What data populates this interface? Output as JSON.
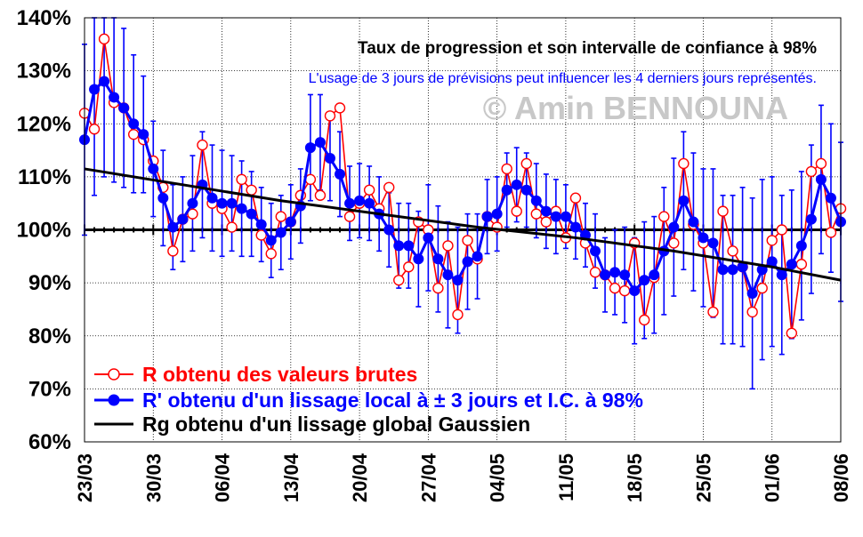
{
  "chart_data": {
    "type": "line",
    "title": "Taux de progression et son intervalle de confiance à 98%",
    "subtitle": "L'usage de 3 jours de prévisions peut influencer les 4 derniers jours représentés.",
    "watermark": "© Amin BENNOUNA",
    "y_ticks": [
      "140%",
      "130%",
      "120%",
      "110%",
      "100%",
      "90%",
      "80%",
      "70%",
      "60%"
    ],
    "ylim": [
      60,
      140
    ],
    "x_ticks": [
      "23/03",
      "30/03",
      "06/04",
      "13/04",
      "20/04",
      "27/04",
      "04/05",
      "11/05",
      "18/05",
      "25/05",
      "01/06",
      "08/06"
    ],
    "x_start": "23/03",
    "x_end": "08/06",
    "reference_line": 100,
    "legend": [
      {
        "label": "R obtenu des valeurs brutes",
        "color": "#ff0000"
      },
      {
        "label": "R' obtenu d'un lissage local à ± 3 jours et I.C. à 98%",
        "color": "#0000ff"
      },
      {
        "label": "Rg obtenu d'un lissage global Gaussien",
        "color": "#000000"
      }
    ],
    "series": [
      {
        "name": "R obtenu des valeurs brutes",
        "color": "#ff0000",
        "values": [
          122,
          119,
          136,
          124,
          123,
          118,
          117,
          113,
          108,
          96,
          102,
          103,
          116,
          105,
          104,
          100.5,
          109.5,
          107.5,
          99,
          95.5,
          102.5,
          101.5,
          106.5,
          109.5,
          106.5,
          121.5,
          123,
          102.5,
          105,
          107.5,
          104,
          108,
          90.5,
          93,
          101.5,
          100,
          89,
          97,
          84,
          98,
          94.5,
          102.5,
          100.5,
          111.5,
          103.5,
          112.5,
          103,
          101.5,
          103.5,
          98.5,
          106,
          97.5,
          92,
          91.5,
          89,
          88.5,
          97.5,
          83,
          91,
          102.5,
          97.5,
          112.5,
          101,
          97.5,
          84.5,
          103.5,
          96,
          93,
          84.5,
          89,
          98,
          100,
          80.5,
          93.5,
          111,
          112.5,
          99.5,
          104
        ]
      },
      {
        "name": "R' obtenu d'un lissage local à ± 3 jours et I.C. à 98%",
        "color": "#0000ff",
        "values": [
          117,
          126.5,
          128,
          125,
          123,
          120,
          118,
          111.5,
          106,
          100.5,
          102,
          105,
          108.5,
          106,
          105,
          105,
          104,
          103,
          101,
          98,
          99.5,
          101.5,
          104.5,
          115.5,
          116.5,
          113.5,
          110.5,
          105,
          105.5,
          105,
          103,
          100,
          97,
          97,
          94.5,
          98.5,
          94.5,
          91.5,
          90.5,
          94,
          95,
          102.5,
          103,
          107.5,
          108.5,
          107.5,
          105.5,
          103.5,
          102.5,
          102.5,
          100.5,
          99,
          96,
          91.5,
          92,
          91.5,
          88.5,
          90.5,
          91.5,
          96,
          100.5,
          105.5,
          101.5,
          98.5,
          97.5,
          92.5,
          92.5,
          93,
          88,
          92.5,
          94,
          91.5,
          93.5,
          97,
          102,
          109.5,
          106,
          101.5
        ],
        "ci_half_width": [
          18,
          20,
          18,
          16,
          15,
          13,
          11,
          9,
          9,
          8,
          8,
          9,
          10,
          10,
          10,
          9,
          9,
          8,
          7,
          7,
          7,
          7,
          7,
          10,
          9,
          8,
          8,
          7,
          7,
          7,
          7,
          7,
          8,
          8,
          9,
          10,
          10,
          10,
          10,
          9,
          8,
          7,
          7,
          7,
          7,
          7,
          7,
          7,
          7,
          6,
          6,
          6,
          7,
          7,
          8,
          9,
          10,
          11,
          11,
          12,
          13,
          13,
          13,
          13,
          14,
          14,
          14,
          15,
          18,
          17,
          16,
          15,
          14,
          14,
          14,
          14,
          14,
          15
        ]
      },
      {
        "name": "Rg obtenu d'un lissage global Gaussien",
        "color": "#000000",
        "x": [
          0,
          10,
          20,
          30,
          40,
          50,
          60,
          70,
          77
        ],
        "values": [
          111.5,
          108.5,
          105.5,
          103,
          100.5,
          98.5,
          96,
          93,
          90.5
        ]
      }
    ]
  }
}
